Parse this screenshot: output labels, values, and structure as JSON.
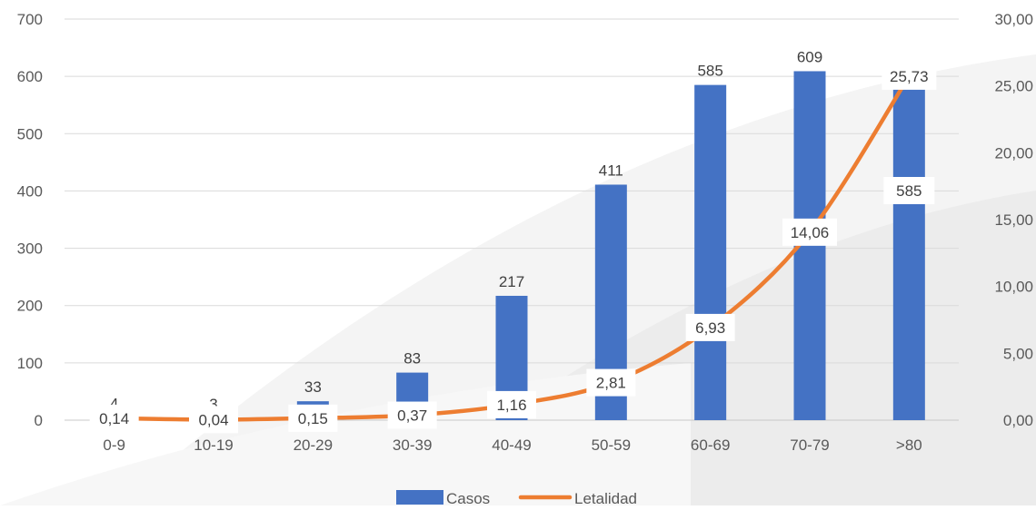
{
  "chart_data": {
    "type": "bar",
    "categories": [
      "0-9",
      "10-19",
      "20-29",
      "30-39",
      "40-49",
      "50-59",
      "60-69",
      "70-79",
      ">80"
    ],
    "series": [
      {
        "name": "Casos",
        "type": "bar",
        "axis": "left",
        "values": [
          4,
          3,
          33,
          83,
          217,
          411,
          585,
          609,
          585
        ],
        "labels": [
          "4",
          "3",
          "33",
          "83",
          "217",
          "411",
          "585",
          "609",
          "585"
        ],
        "color": "#4472C4"
      },
      {
        "name": "Letalidad",
        "type": "line",
        "axis": "right",
        "values": [
          0.14,
          0.04,
          0.15,
          0.37,
          1.16,
          2.81,
          6.93,
          14.06,
          25.73
        ],
        "labels": [
          "0,14",
          "0,04",
          "0,15",
          "0,37",
          "1,16",
          "2,81",
          "6,93",
          "14,06",
          "25,73"
        ],
        "color": "#ED7D31"
      }
    ],
    "y_left": {
      "min": 0,
      "max": 700,
      "ticks": [
        "0",
        "100",
        "200",
        "300",
        "400",
        "500",
        "600",
        "700"
      ]
    },
    "y_right": {
      "min": 0,
      "max": 30,
      "ticks": [
        "0,00",
        "5,00",
        "10,00",
        "15,00",
        "20,00",
        "25,00",
        "30,00"
      ]
    },
    "grid": true,
    "legend_position": "bottom"
  }
}
